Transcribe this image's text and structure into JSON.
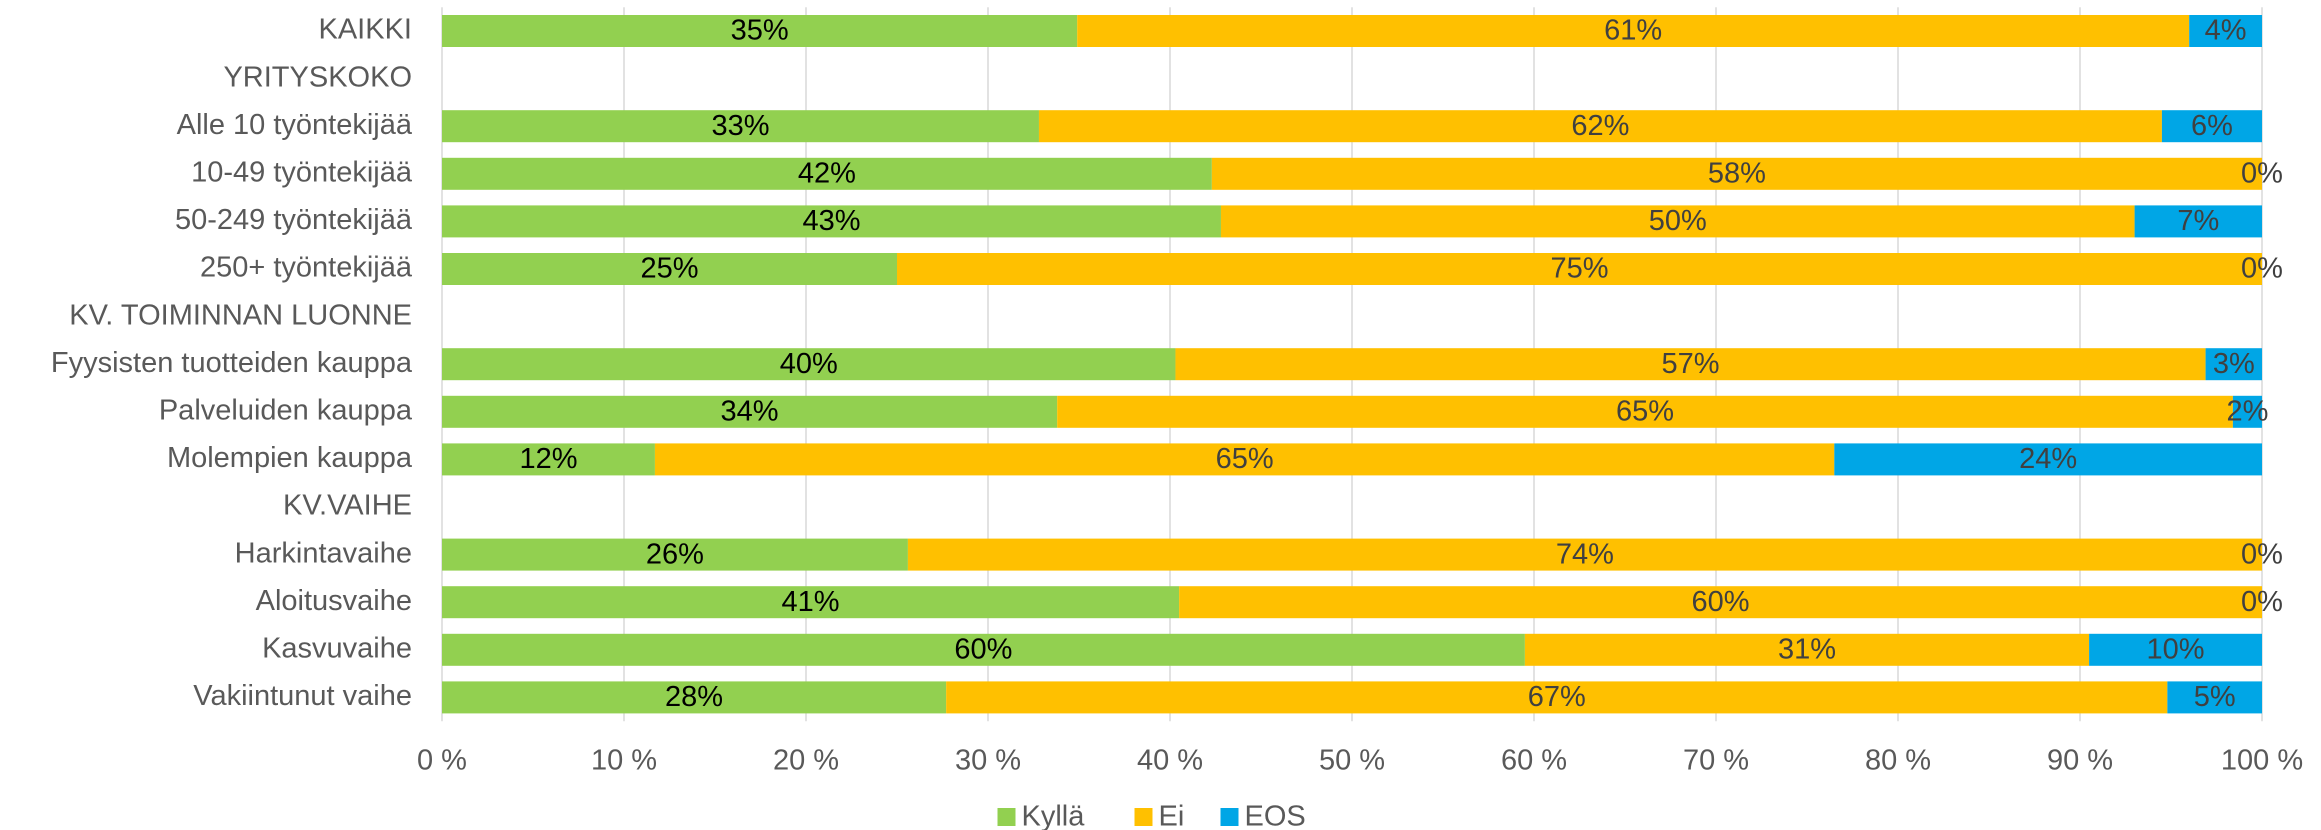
{
  "chart_data": {
    "type": "stacked_barh",
    "categories": [
      "KAIKKI",
      "YRITYSKOKO",
      "Alle 10 työntekijää",
      "10-49 työntekijää",
      "50-249 työntekijää",
      "250+ työntekijää",
      "KV. TOIMINNAN LUONNE",
      "Fyysisten tuotteiden kauppa",
      "Palveluiden kauppa",
      "Molempien kauppa",
      "KV.VAIHE",
      "Harkintavaihe",
      "Aloitusvaihe",
      "Kasvuvaihe",
      "Vakiintunut vaihe"
    ],
    "series": [
      {
        "name": "Kyllä",
        "color": "#92d050",
        "values": [
          34.9,
          null,
          32.8,
          42.3,
          42.8,
          25.0,
          null,
          40.3,
          33.8,
          11.7,
          null,
          25.6,
          40.5,
          59.5,
          27.7
        ],
        "value_labels": [
          "35%",
          null,
          "33%",
          "42%",
          "43%",
          "25%",
          null,
          "40%",
          "34%",
          "12%",
          null,
          "26%",
          "41%",
          "60%",
          "28%"
        ]
      },
      {
        "name": "Ei",
        "color": "#ffc000",
        "values": [
          61.1,
          null,
          61.7,
          57.7,
          50.2,
          75.0,
          null,
          56.6,
          64.6,
          64.8,
          null,
          74.4,
          59.5,
          31.0,
          67.1
        ],
        "value_labels": [
          "61%",
          null,
          "62%",
          "58%",
          "50%",
          "75%",
          null,
          "57%",
          "65%",
          "65%",
          null,
          "74%",
          "60%",
          "31%",
          "67%"
        ]
      },
      {
        "name": "EOS",
        "color": "#00a6e6",
        "values": [
          4.0,
          null,
          5.5,
          0,
          7.0,
          0,
          null,
          3.1,
          1.6,
          23.5,
          null,
          0,
          0,
          9.5,
          5.2
        ],
        "value_labels": [
          "4%",
          null,
          "6%",
          "0%",
          "7%",
          "0%",
          null,
          "3%",
          "2%",
          "24%",
          null,
          "0%",
          "0%",
          "10%",
          "5%"
        ]
      }
    ],
    "xlim": [
      0,
      100
    ],
    "xticks": [
      {
        "value": 0,
        "label": "0 %"
      },
      {
        "value": 10,
        "label": "10 %"
      },
      {
        "value": 20,
        "label": "20 %"
      },
      {
        "value": 30,
        "label": "30 %"
      },
      {
        "value": 40,
        "label": "40 %"
      },
      {
        "value": 50,
        "label": "50 %"
      },
      {
        "value": 60,
        "label": "60 %"
      },
      {
        "value": 70,
        "label": "70 %"
      },
      {
        "value": 80,
        "label": "80 %"
      },
      {
        "value": 90,
        "label": "90 %"
      },
      {
        "value": 100,
        "label": "100 %"
      }
    ],
    "grid": true,
    "legend": "bottom"
  }
}
